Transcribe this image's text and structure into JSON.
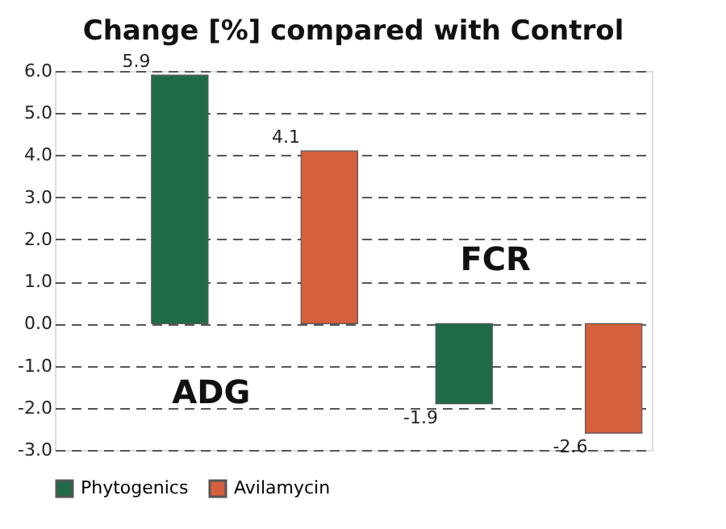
{
  "chart_data": {
    "type": "bar",
    "title": "Change [%] compared with Control",
    "categories": [
      "ADG",
      "FCR"
    ],
    "series": [
      {
        "name": "Phytogenics",
        "color": "#1f6b48",
        "values": [
          5.9,
          -1.9
        ]
      },
      {
        "name": "Avilamycin",
        "color": "#d5603c",
        "values": [
          4.1,
          -2.6
        ]
      }
    ],
    "ylim": [
      -3,
      6
    ],
    "yticks": [
      {
        "value": -3,
        "label": "-3.0"
      },
      {
        "value": -2,
        "label": "-2.0"
      },
      {
        "value": -1,
        "label": "-1.0"
      },
      {
        "value": 0,
        "label": "0.0"
      },
      {
        "value": 1,
        "label": "1.0"
      },
      {
        "value": 2,
        "label": "2.0"
      },
      {
        "value": 3,
        "label": "3.0"
      },
      {
        "value": 4,
        "label": "4.0"
      },
      {
        "value": 5,
        "label": "5.0"
      },
      {
        "value": 6,
        "label": "6.0"
      }
    ],
    "grid": "y",
    "legend": "bottom",
    "data_labels": true
  }
}
